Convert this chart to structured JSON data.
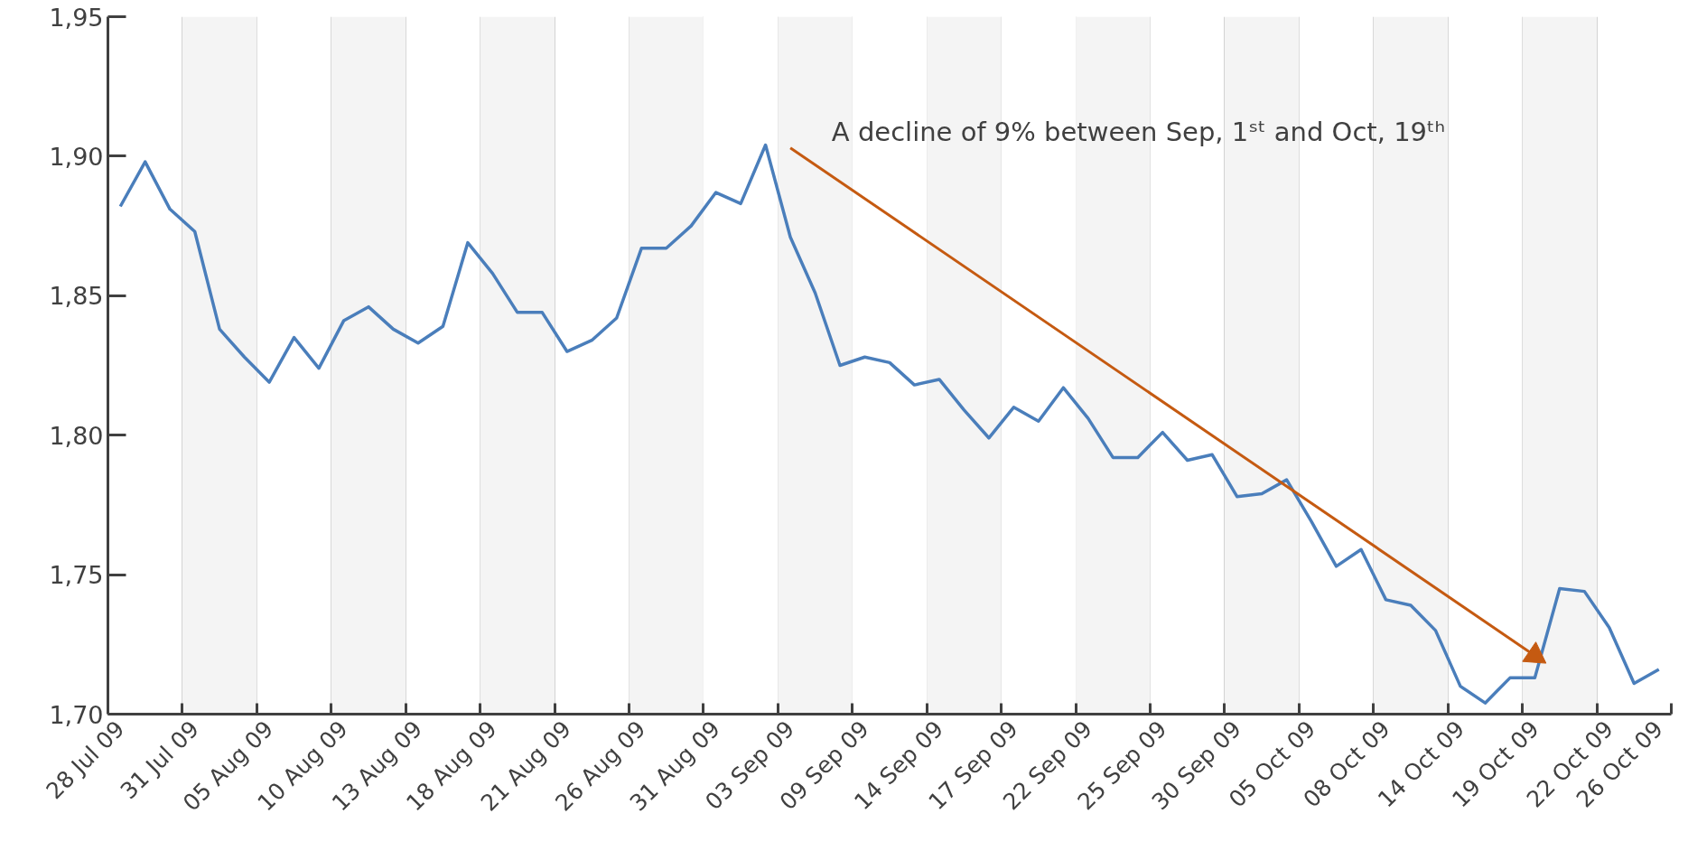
{
  "chart_data": {
    "type": "line",
    "categories": [
      "28 Jul 09",
      null,
      null,
      "31 Jul 09",
      null,
      null,
      "05 Aug 09",
      null,
      null,
      "10 Aug 09",
      null,
      null,
      "13 Aug 09",
      null,
      null,
      "18 Aug 09",
      null,
      null,
      "21 Aug 09",
      null,
      null,
      "26 Aug 09",
      null,
      null,
      "31 Aug 09",
      null,
      null,
      "03 Sep 09",
      null,
      null,
      "09 Sep 09",
      null,
      null,
      "14 Sep 09",
      null,
      null,
      "17 Sep 09",
      null,
      null,
      "22 Sep 09",
      null,
      null,
      "25 Sep 09",
      null,
      null,
      "30 Sep 09",
      null,
      null,
      "05 Oct 09",
      null,
      null,
      "08 Oct 09",
      null,
      null,
      "14 Oct 09",
      null,
      null,
      "19 Oct 09",
      null,
      null,
      "22 Oct 09",
      null,
      "26 Oct 09"
    ],
    "series": [
      {
        "color": "#4a7ebb",
        "values": [
          1.882,
          1.898,
          1.881,
          1.873,
          1.838,
          1.828,
          1.819,
          1.835,
          1.824,
          1.841,
          1.846,
          1.838,
          1.833,
          1.839,
          1.869,
          1.858,
          1.844,
          1.844,
          1.83,
          1.834,
          1.842,
          1.867,
          1.867,
          1.875,
          1.887,
          1.883,
          1.904,
          1.871,
          1.851,
          1.825,
          1.828,
          1.826,
          1.818,
          1.82,
          1.809,
          1.799,
          1.81,
          1.805,
          1.817,
          1.806,
          1.792,
          1.792,
          1.801,
          1.791,
          1.793,
          1.778,
          1.779,
          1.784,
          1.769,
          1.753,
          1.759,
          1.741,
          1.739,
          1.73,
          1.71,
          1.704,
          1.713,
          1.713,
          1.745,
          1.744,
          1.731,
          1.711,
          1.716
        ]
      },
      {
        "type": "line",
        "color": "#c55a11",
        "x": [
          "03 Sep 09",
          "19 Oct 09"
        ],
        "values": [
          1.903,
          1.721
        ]
      }
    ],
    "ylim": [
      1.7,
      1.95
    ],
    "yticks": [
      {
        "value": 1.7,
        "label": "1,70"
      },
      {
        "value": 1.75,
        "label": "1,75"
      },
      {
        "value": 1.8,
        "label": "1,80"
      },
      {
        "value": 1.85,
        "label": "1,85"
      },
      {
        "value": 1.9,
        "label": "1,90"
      },
      {
        "value": 1.95,
        "label": "1,95"
      }
    ],
    "grid": "x",
    "legend": false,
    "bands": [
      {
        "axis": "x",
        "from": "31 Jul 09",
        "to": "05 Aug 09",
        "color": "#f4f4f4"
      },
      {
        "axis": "x",
        "from": "10 Aug 09",
        "to": "13 Aug 09",
        "color": "#f4f4f4"
      },
      {
        "axis": "x",
        "from": "18 Aug 09",
        "to": "21 Aug 09",
        "color": "#f4f4f4"
      },
      {
        "axis": "x",
        "from": "26 Aug 09",
        "to": "31 Aug 09",
        "color": "#f4f4f4"
      },
      {
        "axis": "x",
        "from": "03 Sep 09",
        "to": "09 Sep 09",
        "color": "#f4f4f4"
      },
      {
        "axis": "x",
        "from": "14 Sep 09",
        "to": "17 Sep 09",
        "color": "#f4f4f4"
      },
      {
        "axis": "x",
        "from": "22 Sep 09",
        "to": "25 Sep 09",
        "color": "#f4f4f4"
      },
      {
        "axis": "x",
        "from": "30 Sep 09",
        "to": "05 Oct 09",
        "color": "#f4f4f4"
      },
      {
        "axis": "x",
        "from": "08 Oct 09",
        "to": "14 Oct 09",
        "color": "#f4f4f4"
      },
      {
        "axis": "x",
        "from": "19 Oct 09",
        "to": "22 Oct 09",
        "color": "#f4f4f4"
      }
    ],
    "annotations": [
      "A decline of 9% between Sep, 1ˢᵗ and Oct, 19ᵗʰ"
    ]
  }
}
